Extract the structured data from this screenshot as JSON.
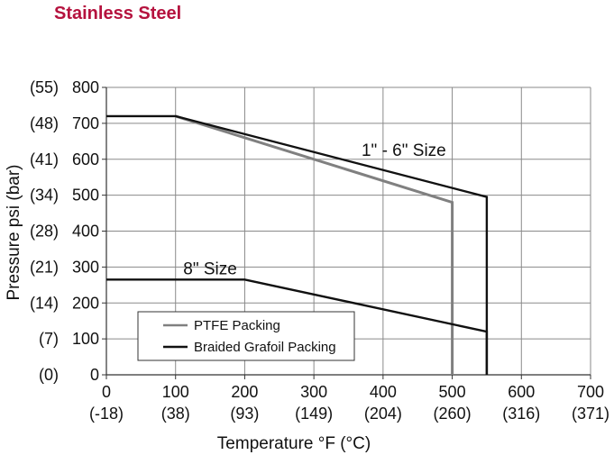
{
  "page": {
    "title": "Stainless Steel"
  },
  "chart_data": {
    "type": "line",
    "title": "Stainless Steel",
    "xlabel": "Temperature °F (°C)",
    "ylabel": "Pressure psi (bar)",
    "xlim": [
      0,
      700
    ],
    "ylim": [
      0,
      800
    ],
    "grid": true,
    "legend_position": "bottom-left",
    "x_ticks": [
      {
        "value": 0,
        "label": "0",
        "sublabel": "(-18)"
      },
      {
        "value": 100,
        "label": "100",
        "sublabel": "(38)"
      },
      {
        "value": 200,
        "label": "200",
        "sublabel": "(93)"
      },
      {
        "value": 300,
        "label": "300",
        "sublabel": "(149)"
      },
      {
        "value": 400,
        "label": "400",
        "sublabel": "(204)"
      },
      {
        "value": 500,
        "label": "500",
        "sublabel": "(260)"
      },
      {
        "value": 600,
        "label": "600",
        "sublabel": "(316)"
      },
      {
        "value": 700,
        "label": "700",
        "sublabel": "(371)"
      }
    ],
    "y_ticks": [
      {
        "value": 0,
        "label": "0",
        "sublabel": "(0)"
      },
      {
        "value": 100,
        "label": "100",
        "sublabel": "(7)"
      },
      {
        "value": 200,
        "label": "200",
        "sublabel": "(14)"
      },
      {
        "value": 300,
        "label": "300",
        "sublabel": "(21)"
      },
      {
        "value": 400,
        "label": "400",
        "sublabel": "(28)"
      },
      {
        "value": 500,
        "label": "500",
        "sublabel": "(34)"
      },
      {
        "value": 600,
        "label": "600",
        "sublabel": "(41)"
      },
      {
        "value": 700,
        "label": "700",
        "sublabel": "(48)"
      },
      {
        "value": 800,
        "label": "800",
        "sublabel": "(55)"
      }
    ],
    "series": [
      {
        "name": "PTFE Packing",
        "color": "#808080",
        "points": [
          [
            100,
            720
          ],
          [
            500,
            480
          ],
          [
            500,
            0
          ]
        ]
      },
      {
        "name": "Braided Grafoil Packing",
        "group": "1\" - 6\" Size",
        "color": "#111111",
        "points": [
          [
            0,
            720
          ],
          [
            100,
            720
          ],
          [
            550,
            495
          ],
          [
            550,
            0
          ]
        ]
      },
      {
        "name": "Braided Grafoil Packing",
        "group": "8\" Size",
        "color": "#111111",
        "points": [
          [
            0,
            265
          ],
          [
            200,
            265
          ],
          [
            550,
            120
          ],
          [
            550,
            0
          ]
        ]
      }
    ],
    "annotations": [
      {
        "text": "1\" - 6\" Size",
        "x": 430,
        "y": 610
      },
      {
        "text": "8\" Size",
        "x": 150,
        "y": 280
      }
    ],
    "legend": [
      {
        "label": "PTFE Packing",
        "color": "#808080"
      },
      {
        "label": "Braided Grafoil Packing",
        "color": "#111111"
      }
    ]
  }
}
